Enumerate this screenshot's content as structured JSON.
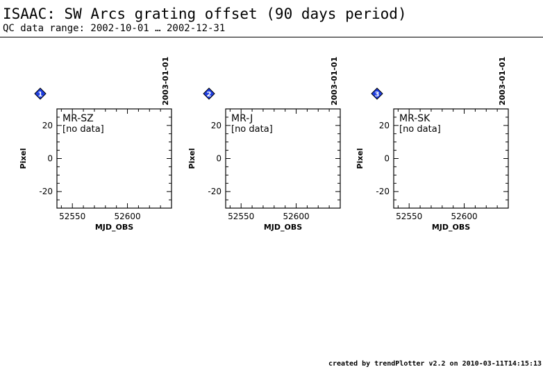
{
  "header": {
    "title": "ISAAC: SW Arcs grating offset (90 days period)",
    "subtitle": "QC data range: 2002-10-01 … 2002-12-31"
  },
  "footer": {
    "credit": "created by trendPlotter v2.2 on 2010-03-11T14:15:13"
  },
  "colors": {
    "badge": "#1f3ee0",
    "badge_outline": "#000000",
    "axis": "#000000"
  },
  "chart_data": [
    {
      "type": "scatter",
      "panel_number": "1",
      "label": "MR-SZ",
      "status": "[no data]",
      "xlabel": "MJD_OBS",
      "ylabel": "Pixel",
      "xlim": [
        52536,
        52640
      ],
      "ylim": [
        -30,
        30
      ],
      "xticks": [
        "52550",
        "52600"
      ],
      "yticks": [
        "20",
        "0",
        "-20"
      ],
      "date_marker": {
        "x": 52640,
        "label": "2003-01-01"
      },
      "points": []
    },
    {
      "type": "scatter",
      "panel_number": "2",
      "label": "MR-J",
      "status": "[no data]",
      "xlabel": "MJD_OBS",
      "ylabel": "Pixel",
      "xlim": [
        52536,
        52640
      ],
      "ylim": [
        -30,
        30
      ],
      "xticks": [
        "52550",
        "52600"
      ],
      "yticks": [
        "20",
        "0",
        "-20"
      ],
      "date_marker": {
        "x": 52640,
        "label": "2003-01-01"
      },
      "points": []
    },
    {
      "type": "scatter",
      "panel_number": "3",
      "label": "MR-SK",
      "status": "[no data]",
      "xlabel": "MJD_OBS",
      "ylabel": "Pixel",
      "xlim": [
        52536,
        52640
      ],
      "ylim": [
        -30,
        30
      ],
      "xticks": [
        "52550",
        "52600"
      ],
      "yticks": [
        "20",
        "0",
        "-20"
      ],
      "date_marker": {
        "x": 52640,
        "label": "2003-01-01"
      },
      "points": []
    }
  ]
}
